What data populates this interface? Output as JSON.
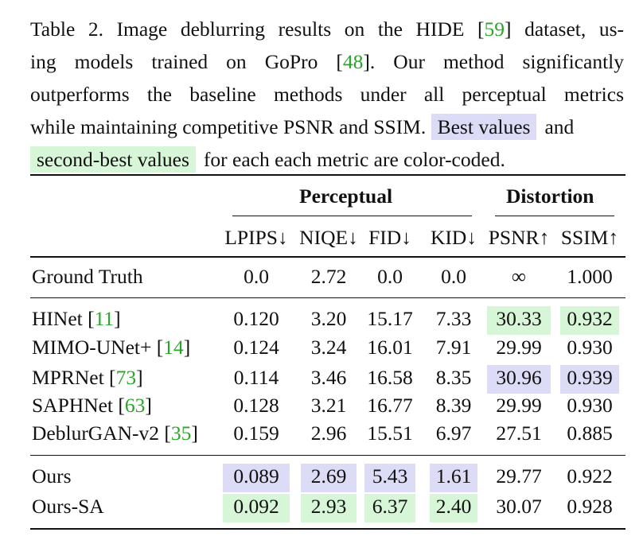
{
  "caption": {
    "line1": "Table 2.  Image deblurring results on the HIDE [59] dataset, us-",
    "line1_a": "Table 2.  Image deblurring results on the HIDE [",
    "line1_ref": "59",
    "line1_b": "] dataset, us-",
    "line2_a": "ing models trained on GoPro [",
    "line2_ref": "48",
    "line2_b": "].  Our method significantly",
    "line3": "outperforms the baseline methods under all perceptual metrics",
    "line4_a": "while maintaining competitive PSNR and SSIM. ",
    "best_label": "Best values",
    "line4_b": "and",
    "second_label": "second-best values",
    "line5_b": "for each each metric are color-coded."
  },
  "table": {
    "group_perceptual": "Perceptual",
    "group_distortion": "Distortion",
    "columns": [
      "LPIPS↓",
      "NIQE↓",
      "FID↓",
      "KID↓",
      "PSNR↑",
      "SSIM↑"
    ],
    "rows": [
      {
        "method": "Ground Truth",
        "ref": "",
        "values": [
          "0.0",
          "2.72",
          "0.0",
          "0.0",
          "∞",
          "1.000"
        ]
      },
      {
        "method": "HINet [",
        "ref": "11",
        "values": [
          "0.120",
          "3.20",
          "15.17",
          "7.33",
          "30.33",
          "0.932"
        ]
      },
      {
        "method": "MIMO-UNet+ [",
        "ref": "14",
        "values": [
          "0.124",
          "3.24",
          "16.01",
          "7.91",
          "29.99",
          "0.930"
        ]
      },
      {
        "method": "MPRNet [",
        "ref": "73",
        "values": [
          "0.114",
          "3.46",
          "16.58",
          "8.35",
          "30.96",
          "0.939"
        ]
      },
      {
        "method": "SAPHNet [",
        "ref": "63",
        "values": [
          "0.128",
          "3.21",
          "16.77",
          "8.39",
          "29.99",
          "0.930"
        ]
      },
      {
        "method": "DeblurGAN-v2 [",
        "ref": "35",
        "values": [
          "0.159",
          "2.96",
          "15.51",
          "6.97",
          "27.51",
          "0.885"
        ]
      },
      {
        "method": "Ours",
        "ref": "",
        "values": [
          "0.089",
          "2.69",
          "5.43",
          "1.61",
          "29.77",
          "0.922"
        ]
      },
      {
        "method": "Ours-SA",
        "ref": "",
        "values": [
          "0.092",
          "2.93",
          "6.37",
          "2.40",
          "30.07",
          "0.928"
        ]
      }
    ],
    "highlight_colors": {
      "best": "#dcdcf6",
      "second": "#d7f5d7"
    },
    "highlights": [
      {
        "row": 1,
        "col": 4,
        "kind": "second"
      },
      {
        "row": 1,
        "col": 5,
        "kind": "second"
      },
      {
        "row": 3,
        "col": 4,
        "kind": "best"
      },
      {
        "row": 3,
        "col": 5,
        "kind": "best"
      },
      {
        "row": 6,
        "col": 0,
        "kind": "best"
      },
      {
        "row": 6,
        "col": 1,
        "kind": "best"
      },
      {
        "row": 6,
        "col": 2,
        "kind": "best"
      },
      {
        "row": 6,
        "col": 3,
        "kind": "best"
      },
      {
        "row": 7,
        "col": 0,
        "kind": "second"
      },
      {
        "row": 7,
        "col": 1,
        "kind": "second"
      },
      {
        "row": 7,
        "col": 2,
        "kind": "second"
      },
      {
        "row": 7,
        "col": 3,
        "kind": "second"
      }
    ]
  }
}
